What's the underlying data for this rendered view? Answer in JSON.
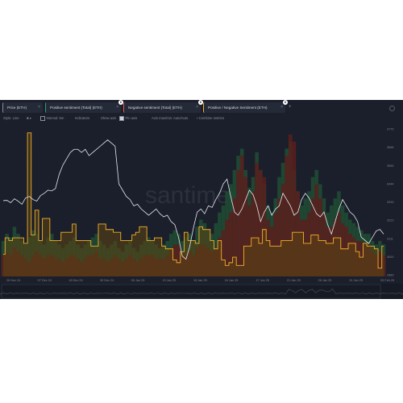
{
  "tabs": [
    {
      "label": "Price (ETH)",
      "accent": "#9aa0aa",
      "badge": ""
    },
    {
      "label": "Positive sentiment (Total) (ETH)",
      "accent": "#26a17b",
      "badge": "6"
    },
    {
      "label": "Negative sentiment (Total) (ETH)",
      "accent": "#e05a47",
      "badge": "6"
    },
    {
      "label": "Positive / Negative Sentiment (ETH)",
      "accent": "#f2b029",
      "badge": "6"
    }
  ],
  "add_tab": "+",
  "toolbar": {
    "style_label": "Style: Line",
    "interval_label": "Interval: 5m",
    "indicators_label": "Indicators",
    "show_axis_label": "Show axis",
    "pin_axis_label": "Pin axis",
    "axis_max_min_label": "Axis max/min: Auto/Auto",
    "combine_label": "Combine metrics"
  },
  "watermark": "santiment",
  "colors": {
    "background": "#1b1f2b",
    "price_line": "#e6e8ec",
    "ratio_line": "#f2b029",
    "ratio_fill": "#5c4312",
    "positive_bar": "#1f4a33",
    "negative_bar": "#5a1f1d"
  },
  "chart_data": {
    "type": "line",
    "x_ticks": [
      "26 Nov 24",
      "07 Dec 24",
      "18 Dec 24",
      "30 Dec 24",
      "06 Jan 25",
      "13 Jan 25",
      "15 Jan 25",
      "16 Jan 25",
      "17 Jan 25",
      "21 Jan 25",
      "26 Jan 25",
      "31 Jan 25",
      "05 Feb 25"
    ],
    "y_ticks_right": [
      "3775",
      "3666",
      "3555",
      "3444",
      "3333",
      "3222",
      "3111",
      "3000",
      "2889"
    ],
    "ylim": [
      2850,
      3800
    ],
    "series": [
      {
        "name": "Price (ETH)",
        "values": [
          3333,
          3335,
          3320,
          3345,
          3330,
          3310,
          3350,
          3360,
          3340,
          3330,
          3365,
          3380,
          3400,
          3395,
          3410,
          3500,
          3560,
          3600,
          3640,
          3660,
          3660,
          3640,
          3660,
          3620,
          3640,
          3660,
          3680,
          3700,
          3720,
          3700,
          3680,
          3440,
          3400,
          3360,
          3340,
          3300,
          3310,
          3280,
          3260,
          3240,
          3260,
          3280,
          3250,
          3230,
          3240,
          3200,
          3180,
          3100,
          2980,
          2960,
          3040,
          3160,
          3260,
          3280,
          3250,
          3300,
          3290,
          3340,
          3380,
          3440,
          3470,
          3360,
          3260,
          3240,
          3280,
          3340,
          3400,
          3370,
          3300,
          3200,
          3260,
          3300,
          3240,
          3280,
          3300,
          3380,
          3340,
          3300,
          3240,
          3260,
          3340,
          3380,
          3350,
          3300,
          3250,
          3230,
          3260,
          3180,
          3120,
          3200,
          3280,
          3340,
          3300,
          3260,
          3240,
          3200,
          3100,
          3080,
          3060,
          3100,
          3140,
          3150,
          3120
        ]
      },
      {
        "name": "Positive / Negative Sentiment (ETH)",
        "values": [
          0.8,
          1.4,
          1.3,
          1.4,
          1.4,
          1.4,
          1.2,
          5.2,
          1.5,
          2.4,
          1.3,
          2.1,
          2.1,
          1.3,
          1.3,
          1.3,
          1.6,
          1.6,
          1.6,
          1.9,
          1.3,
          1.3,
          1.3,
          1.3,
          1.1,
          1.1,
          1.9,
          1.9,
          1.7,
          1.7,
          1.6,
          1.6,
          1.3,
          1.3,
          1.3,
          1.5,
          1.6,
          1.8,
          1.8,
          1.3,
          1.3,
          1.4,
          1.4,
          1.1,
          1.0,
          1.0,
          0.6,
          0.5,
          0.9,
          1.6,
          1.3,
          1.3,
          1.2,
          1.8,
          1.7,
          1.7,
          1.3,
          1.0,
          1.3,
          0.6,
          0.4,
          0.5,
          0.7,
          0.4,
          0.4,
          1.1,
          1.1,
          1.4,
          1.4,
          1.2,
          1.7,
          1.3,
          1.1,
          1.1,
          1.1,
          1.3,
          1.3,
          1.3,
          1.6,
          1.6,
          1.6,
          1.2,
          1.2,
          1.5,
          1.5,
          1.3,
          1.3,
          1.2,
          1.2,
          1.4,
          1.4,
          1.0,
          1.0,
          1.2,
          1.2,
          0.9,
          0.7,
          1.2,
          1.1,
          1.1,
          1.0,
          0.3,
          1.1
        ]
      },
      {
        "name": "Positive sentiment (Total) (ETH)",
        "values": [
          10,
          12,
          11,
          14,
          12,
          10,
          9,
          11,
          13,
          12,
          10,
          9,
          11,
          12,
          10,
          9,
          8,
          9,
          10,
          11,
          9,
          8,
          9,
          10,
          11,
          12,
          10,
          9,
          8,
          9,
          10,
          8,
          7,
          9,
          10,
          8,
          7,
          9,
          10,
          11,
          10,
          9,
          8,
          9,
          10,
          12,
          13,
          12,
          10,
          11,
          12,
          10,
          14,
          16,
          15,
          13,
          12,
          15,
          18,
          20,
          24,
          26,
          30,
          34,
          36,
          30,
          25,
          28,
          35,
          30,
          26,
          20,
          18,
          22,
          28,
          32,
          36,
          38,
          30,
          24,
          20,
          22,
          24,
          28,
          30,
          26,
          22,
          18,
          20,
          22,
          24,
          20,
          18,
          16,
          15,
          14,
          13,
          12,
          12,
          10,
          9,
          10,
          9
        ]
      },
      {
        "name": "Negative sentiment (Total) (ETH)",
        "values": [
          6,
          7,
          6,
          8,
          7,
          6,
          5,
          4,
          6,
          7,
          6,
          5,
          6,
          6,
          5,
          5,
          4,
          5,
          6,
          6,
          5,
          4,
          5,
          6,
          6,
          7,
          5,
          5,
          4,
          5,
          6,
          5,
          4,
          5,
          6,
          5,
          4,
          5,
          6,
          6,
          6,
          5,
          5,
          5,
          6,
          8,
          9,
          9,
          7,
          6,
          7,
          6,
          8,
          9,
          9,
          8,
          7,
          8,
          11,
          13,
          16,
          18,
          22,
          30,
          34,
          28,
          20,
          24,
          32,
          30,
          28,
          16,
          14,
          18,
          22,
          26,
          34,
          40,
          38,
          24,
          16,
          16,
          18,
          22,
          26,
          22,
          18,
          14,
          14,
          16,
          18,
          15,
          14,
          12,
          11,
          10,
          10,
          9,
          9,
          7,
          6,
          7,
          6
        ]
      }
    ]
  }
}
